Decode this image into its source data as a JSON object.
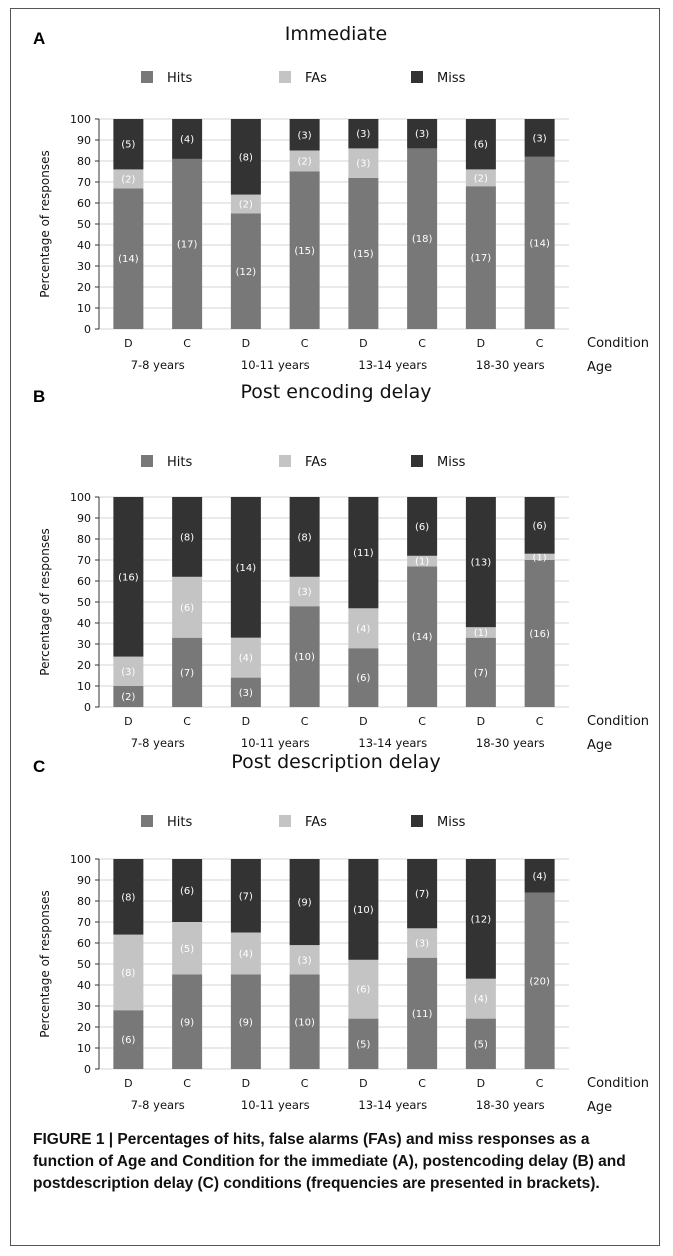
{
  "colors": {
    "hits": "#787878",
    "fas": "#c4c4c4",
    "miss": "#333333"
  },
  "chart_data": [
    {
      "type": "bar",
      "stacked": true,
      "panel": "A",
      "title": "Immediate",
      "ylabel": "Percentage of responses",
      "ylim": [
        0,
        100
      ],
      "yticks": [
        "0",
        "10",
        "20",
        "30",
        "40",
        "50",
        "60",
        "70",
        "80",
        "90",
        "100"
      ],
      "xlabel_condition": "Condition",
      "xlabel_age": "Age",
      "categories": [
        "D",
        "C",
        "D",
        "C",
        "D",
        "C",
        "D",
        "C"
      ],
      "age_groups": [
        "7-8 years",
        "10-11 years",
        "13-14 years",
        "18-30 years"
      ],
      "legend": [
        "Hits",
        "FAs",
        "Miss"
      ],
      "series": [
        {
          "name": "Hits",
          "values": [
            67,
            81,
            55,
            75,
            72,
            86,
            68,
            82
          ],
          "labels": [
            "(14)",
            "(17)",
            "(12)",
            "(15)",
            "(15)",
            "(18)",
            "(17)",
            "(14)"
          ]
        },
        {
          "name": "FAs",
          "values": [
            9,
            0,
            9,
            10,
            14,
            0,
            8,
            0
          ],
          "labels": [
            "(2)",
            "",
            "(2)",
            "(2)",
            "(3)",
            "",
            "(2)",
            ""
          ]
        },
        {
          "name": "Miss",
          "values": [
            24,
            19,
            36,
            15,
            14,
            14,
            24,
            18
          ],
          "labels": [
            "(5)",
            "(4)",
            "(8)",
            "(3)",
            "(3)",
            "(3)",
            "(6)",
            "(3)"
          ]
        }
      ]
    },
    {
      "type": "bar",
      "stacked": true,
      "panel": "B",
      "title": "Post encoding delay",
      "ylabel": "Percentage of responses",
      "ylim": [
        0,
        100
      ],
      "yticks": [
        "0",
        "10",
        "20",
        "30",
        "40",
        "50",
        "60",
        "70",
        "80",
        "90",
        "100"
      ],
      "xlabel_condition": "Condition",
      "xlabel_age": "Age",
      "categories": [
        "D",
        "C",
        "D",
        "C",
        "D",
        "C",
        "D",
        "C"
      ],
      "age_groups": [
        "7-8 years",
        "10-11 years",
        "13-14 years",
        "18-30 years"
      ],
      "legend": [
        "Hits",
        "FAs",
        "Miss"
      ],
      "series": [
        {
          "name": "Hits",
          "values": [
            10,
            33,
            14,
            48,
            28,
            67,
            33,
            70
          ],
          "labels": [
            "(2)",
            "(7)",
            "(3)",
            "(10)",
            "(6)",
            "(14)",
            "(7)",
            "(16)"
          ]
        },
        {
          "name": "FAs",
          "values": [
            14,
            29,
            19,
            14,
            19,
            5,
            5,
            3
          ],
          "labels": [
            "(3)",
            "(6)",
            "(4)",
            "(3)",
            "(4)",
            "(1)",
            "(1)",
            "(1)"
          ]
        },
        {
          "name": "Miss",
          "values": [
            76,
            38,
            67,
            38,
            53,
            28,
            62,
            27
          ],
          "labels": [
            "(16)",
            "(8)",
            "(14)",
            "(8)",
            "(11)",
            "(6)",
            "(13)",
            "(6)"
          ]
        }
      ]
    },
    {
      "type": "bar",
      "stacked": true,
      "panel": "C",
      "title": "Post description delay",
      "ylabel": "Percentage of responses",
      "ylim": [
        0,
        100
      ],
      "yticks": [
        "0",
        "10",
        "20",
        "30",
        "40",
        "50",
        "60",
        "70",
        "80",
        "90",
        "100"
      ],
      "xlabel_condition": "Condition",
      "xlabel_age": "Age",
      "categories": [
        "D",
        "C",
        "D",
        "C",
        "D",
        "C",
        "D",
        "C"
      ],
      "age_groups": [
        "7-8 years",
        "10-11 years",
        "13-14 years",
        "18-30 years"
      ],
      "legend": [
        "Hits",
        "FAs",
        "Miss"
      ],
      "series": [
        {
          "name": "Hits",
          "values": [
            28,
            45,
            45,
            45,
            24,
            53,
            24,
            84
          ],
          "labels": [
            "(6)",
            "(9)",
            "(9)",
            "(10)",
            "(5)",
            "(11)",
            "(5)",
            "(20)"
          ]
        },
        {
          "name": "FAs",
          "values": [
            36,
            25,
            20,
            14,
            28,
            14,
            19,
            0
          ],
          "labels": [
            "(8)",
            "(5)",
            "(4)",
            "(3)",
            "(6)",
            "(3)",
            "(4)",
            ""
          ]
        },
        {
          "name": "Miss",
          "values": [
            36,
            30,
            35,
            41,
            48,
            33,
            57,
            16
          ],
          "labels": [
            "(8)",
            "(6)",
            "(7)",
            "(9)",
            "(10)",
            "(7)",
            "(12)",
            "(4)"
          ]
        }
      ]
    }
  ],
  "caption": "FIGURE 1 | Percentages of hits, false alarms (FAs) and miss responses as a function of Age and Condition for the immediate (A), postencoding delay (B) and postdescription delay (C) conditions (frequencies are presented in brackets)."
}
